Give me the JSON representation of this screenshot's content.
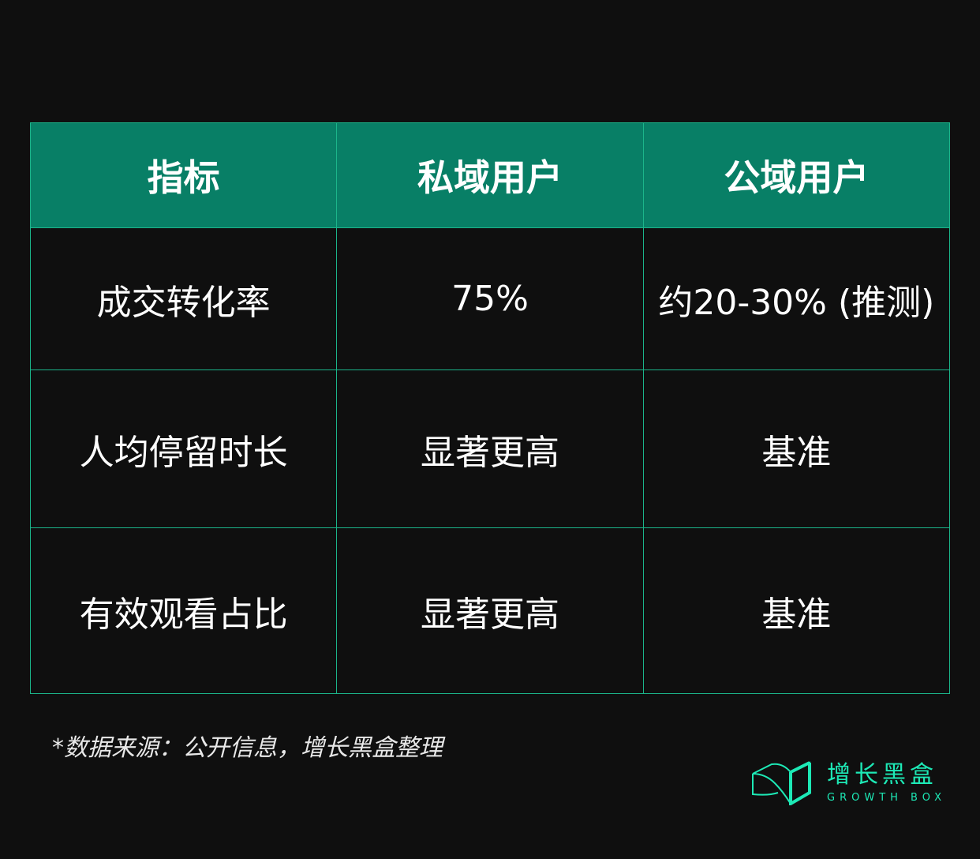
{
  "table": {
    "headers": [
      "指标",
      "私域用户",
      "公域用户"
    ],
    "rows": [
      [
        "成交转化率",
        "75%",
        "约20-30% (推测)"
      ],
      [
        "人均停留时长",
        "显著更高",
        "基准"
      ],
      [
        "有效观看占比",
        "显著更高",
        "基准"
      ]
    ]
  },
  "note": "*数据来源：公开信息，增长黑盒整理",
  "brand": {
    "name_cn": "增长黑盒",
    "name_en": "GROWTH BOX",
    "icon": "box-logo-icon"
  },
  "colors": {
    "header_bg": "#087f66",
    "border": "#1bb58a",
    "brand": "#1de9b6",
    "background": "#0f0f0f"
  }
}
